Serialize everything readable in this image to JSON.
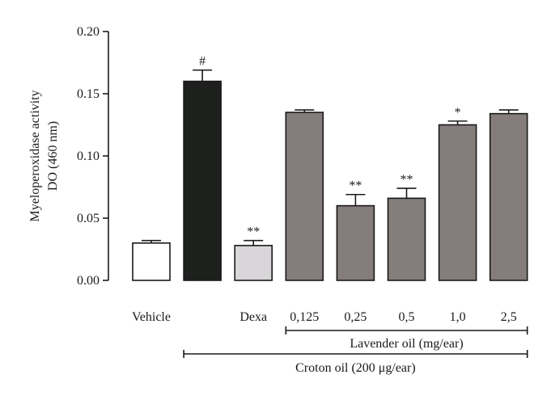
{
  "chart_data": {
    "type": "bar",
    "ylabel_lines": [
      "Myeloperoxidase activity",
      "DO (460 nm)"
    ],
    "ylim": [
      0,
      0.2
    ],
    "yticks": [
      "0.00",
      "0.05",
      "0.10",
      "0.15",
      "0.20"
    ],
    "ytick_values": [
      0,
      0.05,
      0.1,
      0.15,
      0.2
    ],
    "categories": [
      "Vehicle",
      "",
      "Dexa",
      "0,125",
      "0,25",
      "0,5",
      "1,0",
      "2,5"
    ],
    "values": [
      0.03,
      0.16,
      0.028,
      0.135,
      0.06,
      0.066,
      0.125,
      0.134
    ],
    "errors": [
      0.002,
      0.009,
      0.004,
      0.002,
      0.009,
      0.008,
      0.003,
      0.003
    ],
    "significance": [
      "",
      "#",
      "**",
      "",
      "**",
      "**",
      "*",
      ""
    ],
    "bar_colors": [
      "#ffffff",
      "#1e201e",
      "#d8d6d8",
      "#857d7b",
      "#857d7b",
      "#857d7b",
      "#857d7b",
      "#857d7b"
    ],
    "grid": false,
    "groups": [
      {
        "label": "Lavender oil (mg/ear)",
        "from_category": 3,
        "to_category": 7
      },
      {
        "label": "Croton oil (200 μg/ear)",
        "from_category": 1,
        "to_category": 7
      }
    ]
  }
}
